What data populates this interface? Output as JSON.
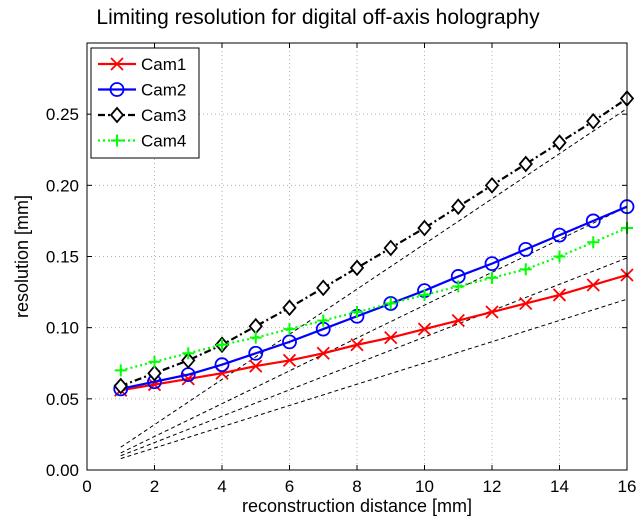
{
  "chart_data": {
    "type": "line",
    "title": "Limiting resolution for digital off-axis holography",
    "xlabel": "reconstruction distance [mm]",
    "ylabel": "resolution [mm]",
    "xlim": [
      0,
      16
    ],
    "ylim": [
      0,
      0.3
    ],
    "xticks": [
      "0",
      "2",
      "4",
      "6",
      "8",
      "10",
      "12",
      "14",
      "16"
    ],
    "yticks": [
      "0.00",
      "0.05",
      "0.10",
      "0.15",
      "0.20",
      "0.25"
    ],
    "grid": true,
    "legend_position": "top-left",
    "x": [
      1,
      2,
      3,
      4,
      5,
      6,
      7,
      8,
      9,
      10,
      11,
      12,
      13,
      14,
      15,
      16
    ],
    "series": [
      {
        "name": "Cam1",
        "color": "#ff0000",
        "marker": "x",
        "line": "solid",
        "values": [
          0.056,
          0.06,
          0.064,
          0.068,
          0.073,
          0.077,
          0.082,
          0.088,
          0.093,
          0.099,
          0.105,
          0.111,
          0.117,
          0.123,
          0.13,
          0.137
        ]
      },
      {
        "name": "Cam2",
        "color": "#0000ff",
        "marker": "circle",
        "line": "solid",
        "values": [
          0.057,
          0.062,
          0.067,
          0.074,
          0.082,
          0.09,
          0.099,
          0.108,
          0.117,
          0.126,
          0.136,
          0.145,
          0.155,
          0.165,
          0.175,
          0.185
        ]
      },
      {
        "name": "Cam3",
        "color": "#000000",
        "marker": "diamond",
        "line": "dashdot",
        "values": [
          0.059,
          0.068,
          0.077,
          0.088,
          0.101,
          0.114,
          0.128,
          0.142,
          0.156,
          0.17,
          0.185,
          0.2,
          0.215,
          0.23,
          0.245,
          0.261
        ]
      },
      {
        "name": "Cam4",
        "color": "#00ff00",
        "marker": "plus",
        "line": "dotted",
        "values": [
          0.07,
          0.076,
          0.082,
          0.088,
          0.093,
          0.099,
          0.105,
          0.111,
          0.117,
          0.123,
          0.129,
          0.135,
          0.141,
          0.15,
          0.16,
          0.17
        ]
      }
    ],
    "reference_lines": [
      {
        "color": "#000000",
        "line": "dashed",
        "points": [
          [
            1,
            0.016
          ],
          [
            16,
            0.254
          ]
        ]
      },
      {
        "color": "#000000",
        "line": "dashed",
        "points": [
          [
            1,
            0.012
          ],
          [
            16,
            0.185
          ]
        ]
      },
      {
        "color": "#000000",
        "line": "dashed",
        "points": [
          [
            1,
            0.01
          ],
          [
            16,
            0.149
          ]
        ]
      },
      {
        "color": "#000000",
        "line": "dashed",
        "points": [
          [
            1,
            0.008
          ],
          [
            16,
            0.12
          ]
        ]
      }
    ]
  }
}
